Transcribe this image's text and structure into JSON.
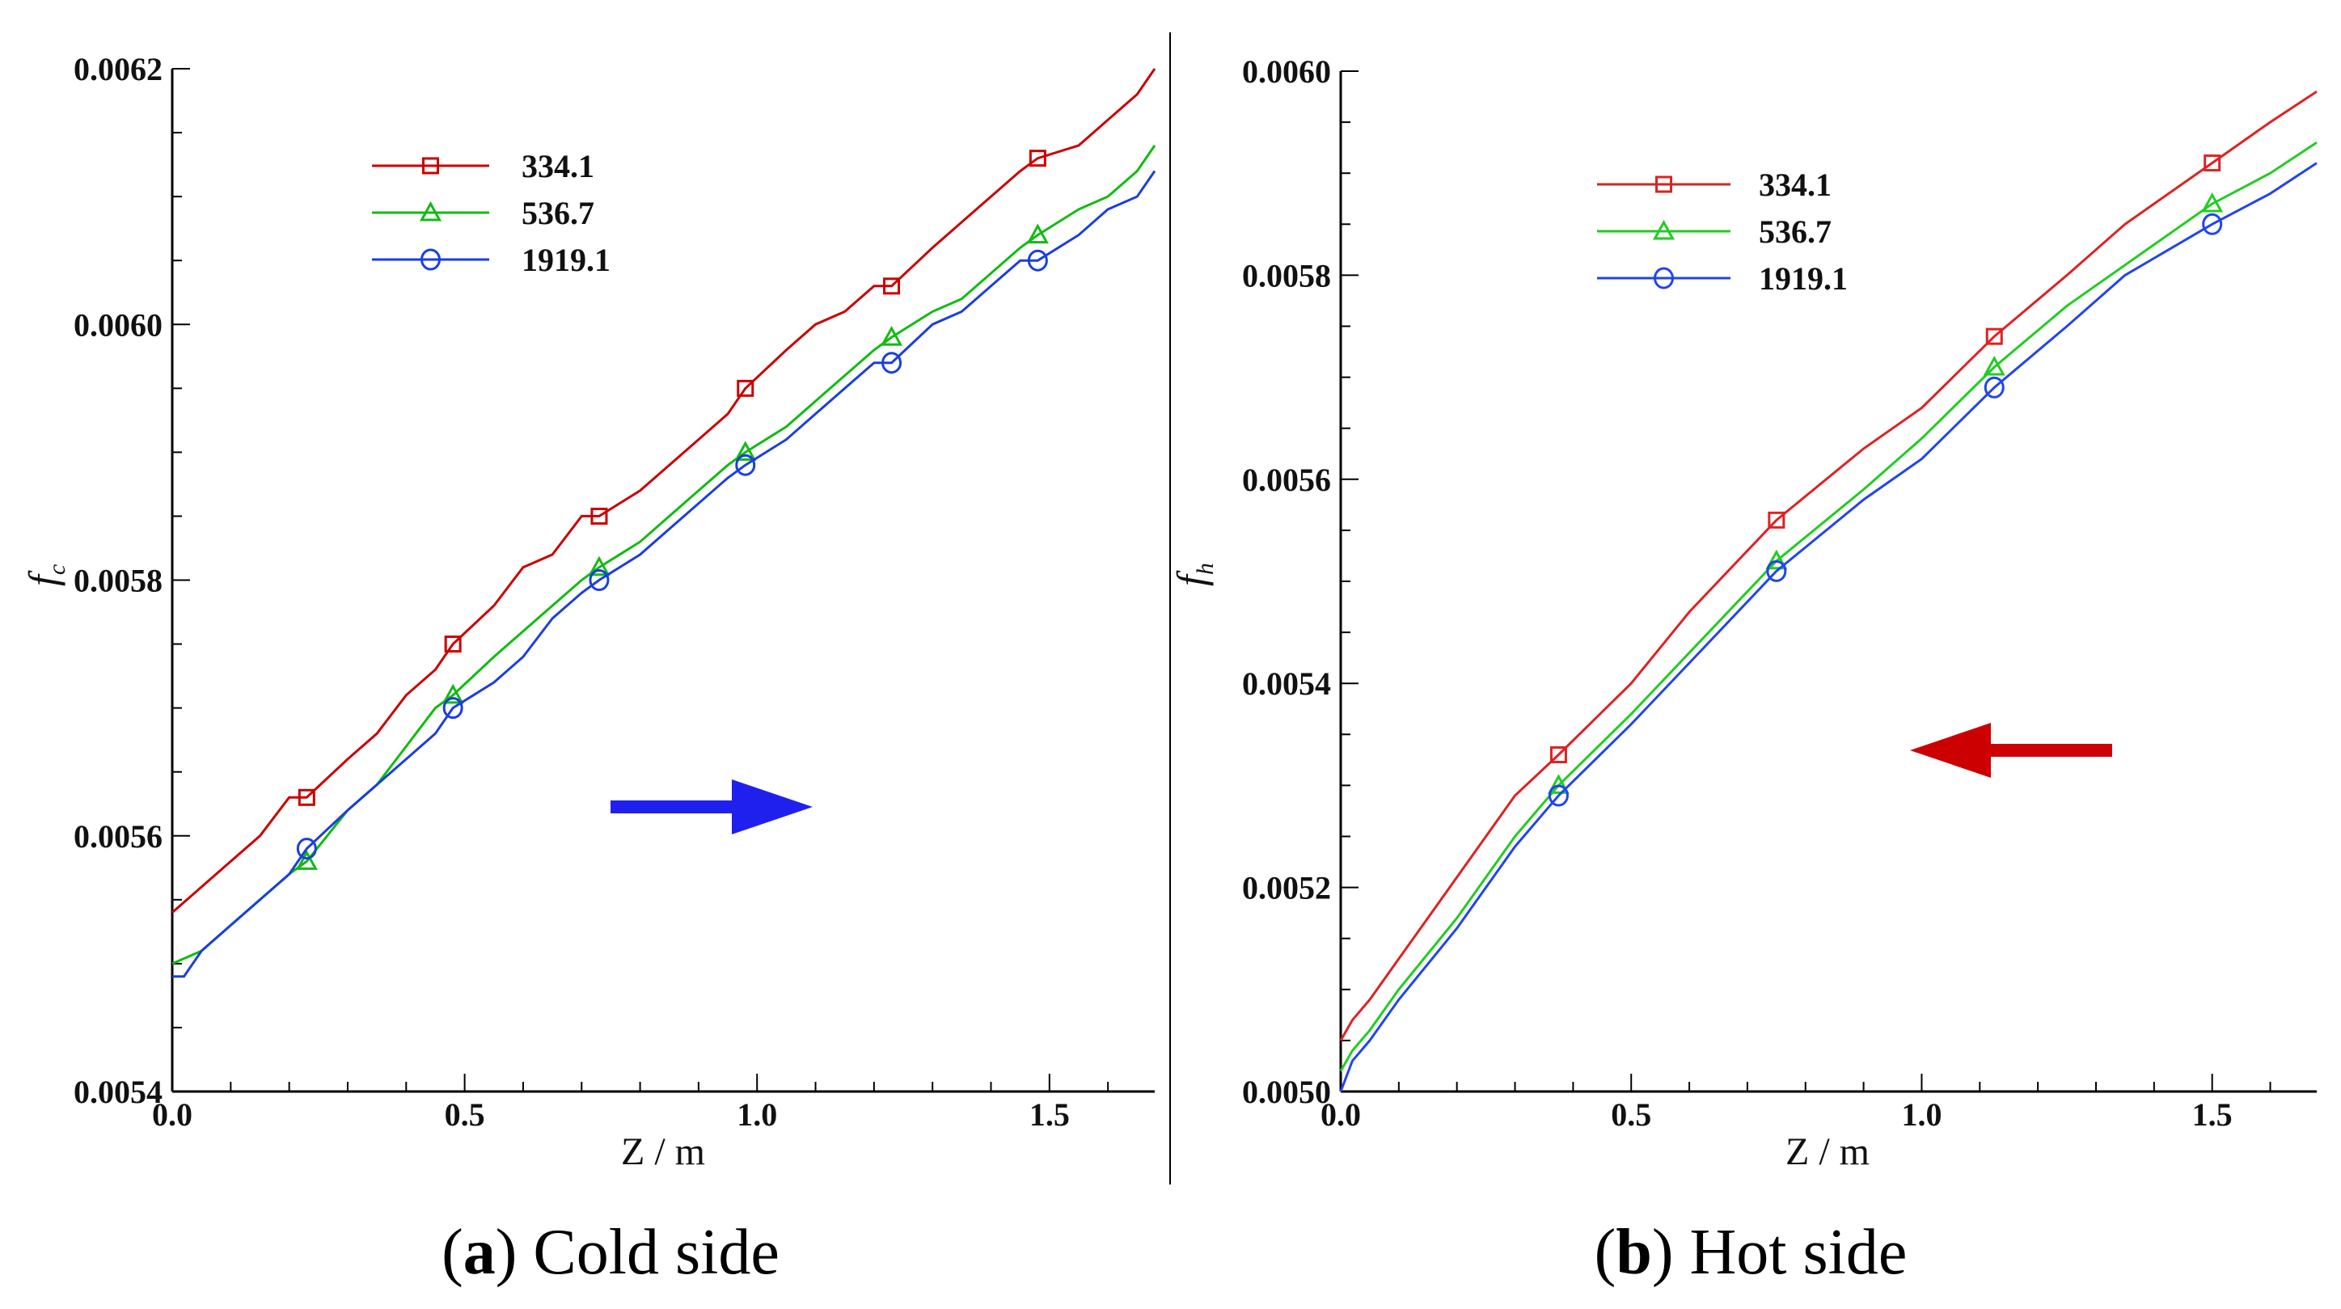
{
  "chart_data": [
    {
      "type": "line",
      "panel": "a",
      "caption_letter": "a",
      "caption_text": "Cold side",
      "xlabel": "Z / m",
      "ylabel_main": "f",
      "ylabel_sub": "c",
      "xlim": [
        0,
        1.68
      ],
      "ylim": [
        0.0054,
        0.0062
      ],
      "xticks": [
        0.0,
        0.5,
        1.0,
        1.5
      ],
      "xtick_labels": [
        "0.0",
        "0.5",
        "1.0",
        "1.5"
      ],
      "yticks": [
        0.0054,
        0.0056,
        0.0058,
        0.006,
        0.0062
      ],
      "ytick_labels": [
        "0.0054",
        "0.0056",
        "0.0058",
        "0.0060",
        "0.0062"
      ],
      "arrow": {
        "direction": "right",
        "color": "#2020ee"
      },
      "series": [
        {
          "name": "334.1",
          "color": "#cc0000",
          "marker": "square",
          "x": [
            0.0,
            0.05,
            0.1,
            0.15,
            0.2,
            0.23,
            0.3,
            0.35,
            0.4,
            0.45,
            0.48,
            0.55,
            0.6,
            0.65,
            0.7,
            0.73,
            0.8,
            0.85,
            0.9,
            0.95,
            0.98,
            1.05,
            1.1,
            1.15,
            1.2,
            1.23,
            1.3,
            1.35,
            1.4,
            1.45,
            1.48,
            1.55,
            1.6,
            1.65,
            1.68
          ],
          "y": [
            0.00554,
            0.00556,
            0.00558,
            0.0056,
            0.00563,
            0.00563,
            0.00566,
            0.00568,
            0.00571,
            0.00573,
            0.00575,
            0.00578,
            0.00581,
            0.00582,
            0.00585,
            0.00585,
            0.00587,
            0.00589,
            0.00591,
            0.00593,
            0.00595,
            0.00598,
            0.006,
            0.00601,
            0.00603,
            0.00603,
            0.00606,
            0.00608,
            0.0061,
            0.00612,
            0.00613,
            0.00614,
            0.00616,
            0.00618,
            0.0062
          ],
          "marker_x": [
            0.23,
            0.48,
            0.73,
            0.98,
            1.23,
            1.48
          ]
        },
        {
          "name": "536.7",
          "color": "#11bb11",
          "marker": "triangle",
          "x": [
            0.0,
            0.05,
            0.1,
            0.15,
            0.2,
            0.23,
            0.3,
            0.35,
            0.4,
            0.45,
            0.48,
            0.55,
            0.6,
            0.65,
            0.7,
            0.73,
            0.8,
            0.85,
            0.9,
            0.95,
            0.98,
            1.05,
            1.1,
            1.15,
            1.2,
            1.23,
            1.3,
            1.35,
            1.4,
            1.45,
            1.48,
            1.55,
            1.6,
            1.65,
            1.68
          ],
          "y": [
            0.0055,
            0.00551,
            0.00553,
            0.00555,
            0.00557,
            0.00558,
            0.00562,
            0.00564,
            0.00567,
            0.0057,
            0.00571,
            0.00574,
            0.00576,
            0.00578,
            0.0058,
            0.00581,
            0.00583,
            0.00585,
            0.00587,
            0.00589,
            0.0059,
            0.00592,
            0.00594,
            0.00596,
            0.00598,
            0.00599,
            0.00601,
            0.00602,
            0.00604,
            0.00606,
            0.00607,
            0.00609,
            0.0061,
            0.00612,
            0.00614
          ],
          "marker_x": [
            0.23,
            0.48,
            0.73,
            0.98,
            1.23,
            1.48
          ]
        },
        {
          "name": "1919.1",
          "color": "#1a3ee0",
          "marker": "circle",
          "x": [
            0.0,
            0.02,
            0.05,
            0.1,
            0.15,
            0.2,
            0.23,
            0.3,
            0.35,
            0.4,
            0.45,
            0.48,
            0.55,
            0.6,
            0.65,
            0.7,
            0.73,
            0.8,
            0.85,
            0.9,
            0.95,
            0.98,
            1.05,
            1.1,
            1.15,
            1.2,
            1.23,
            1.3,
            1.35,
            1.4,
            1.45,
            1.48,
            1.55,
            1.6,
            1.65,
            1.68
          ],
          "y": [
            0.00549,
            0.00549,
            0.00551,
            0.00553,
            0.00555,
            0.00557,
            0.00559,
            0.00562,
            0.00564,
            0.00566,
            0.00568,
            0.0057,
            0.00572,
            0.00574,
            0.00577,
            0.00579,
            0.0058,
            0.00582,
            0.00584,
            0.00586,
            0.00588,
            0.00589,
            0.00591,
            0.00593,
            0.00595,
            0.00597,
            0.00597,
            0.006,
            0.00601,
            0.00603,
            0.00605,
            0.00605,
            0.00607,
            0.00609,
            0.0061,
            0.00612
          ],
          "marker_x": [
            0.23,
            0.48,
            0.73,
            0.98,
            1.23,
            1.48
          ]
        }
      ]
    },
    {
      "type": "line",
      "panel": "b",
      "caption_letter": "b",
      "caption_text": "Hot side",
      "xlabel": "Z / m",
      "ylabel_main": "f",
      "ylabel_sub": "h",
      "xlim": [
        0,
        1.68
      ],
      "ylim": [
        0.005,
        0.006
      ],
      "xticks": [
        0.0,
        0.5,
        1.0,
        1.5
      ],
      "xtick_labels": [
        "0.0",
        "0.5",
        "1.0",
        "1.5"
      ],
      "yticks": [
        0.005,
        0.0052,
        0.0054,
        0.0056,
        0.0058,
        0.006
      ],
      "ytick_labels": [
        "0.0050",
        "0.0052",
        "0.0054",
        "0.0056",
        "0.0058",
        "0.0060"
      ],
      "arrow": {
        "direction": "left",
        "color": "#cc0000"
      },
      "series": [
        {
          "name": "334.1",
          "color": "#dd2222",
          "marker": "square",
          "x": [
            0.0,
            0.02,
            0.05,
            0.1,
            0.2,
            0.3,
            0.375,
            0.5,
            0.6,
            0.75,
            0.9,
            1.0,
            1.125,
            1.25,
            1.35,
            1.5,
            1.6,
            1.68
          ],
          "y": [
            0.00505,
            0.00507,
            0.00509,
            0.00513,
            0.00521,
            0.00529,
            0.00533,
            0.0054,
            0.00547,
            0.00556,
            0.00563,
            0.00567,
            0.00574,
            0.0058,
            0.00585,
            0.00591,
            0.00595,
            0.00598
          ],
          "marker_x": [
            0.375,
            0.75,
            1.125,
            1.5
          ]
        },
        {
          "name": "536.7",
          "color": "#22cc22",
          "marker": "triangle",
          "x": [
            0.0,
            0.02,
            0.05,
            0.1,
            0.2,
            0.3,
            0.375,
            0.5,
            0.6,
            0.75,
            0.9,
            1.0,
            1.125,
            1.25,
            1.35,
            1.5,
            1.6,
            1.68
          ],
          "y": [
            0.00502,
            0.00504,
            0.00506,
            0.0051,
            0.00517,
            0.00525,
            0.0053,
            0.00537,
            0.00543,
            0.00552,
            0.00559,
            0.00564,
            0.00571,
            0.00577,
            0.00581,
            0.00587,
            0.0059,
            0.00593
          ],
          "marker_x": [
            0.375,
            0.75,
            1.125,
            1.5
          ]
        },
        {
          "name": "1919.1",
          "color": "#2244ee",
          "marker": "circle",
          "x": [
            0.0,
            0.02,
            0.05,
            0.1,
            0.2,
            0.3,
            0.375,
            0.5,
            0.6,
            0.75,
            0.9,
            1.0,
            1.125,
            1.25,
            1.35,
            1.5,
            1.6,
            1.68
          ],
          "y": [
            0.005,
            0.00503,
            0.00505,
            0.00509,
            0.00516,
            0.00524,
            0.00529,
            0.00536,
            0.00542,
            0.00551,
            0.00558,
            0.00562,
            0.00569,
            0.00575,
            0.0058,
            0.00585,
            0.00588,
            0.00591
          ],
          "marker_x": [
            0.375,
            0.75,
            1.125,
            1.5
          ]
        }
      ]
    }
  ]
}
